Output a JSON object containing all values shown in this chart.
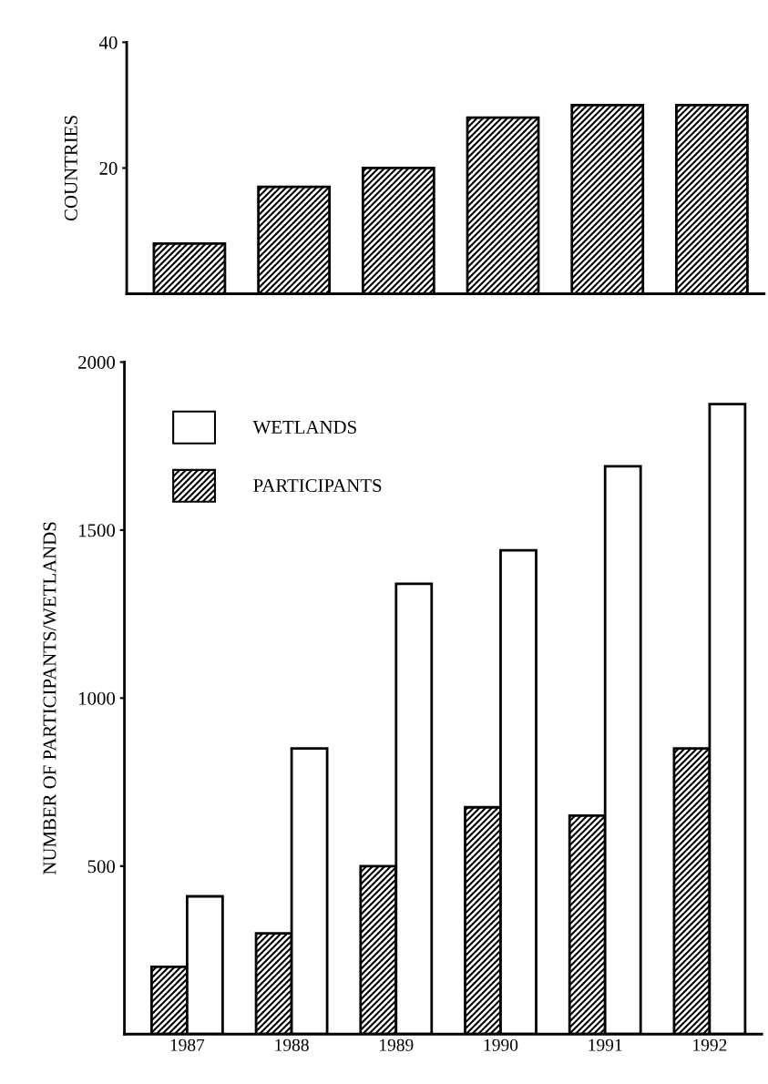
{
  "chart_data": [
    {
      "type": "bar",
      "ylabel": "COUNTRIES",
      "categories": [
        null,
        null,
        null,
        null,
        null,
        null
      ],
      "series": [
        {
          "color": "#000000",
          "values": [
            8,
            17,
            20,
            28,
            30,
            30
          ]
        }
      ],
      "ylim": [
        0,
        40
      ],
      "yticks": [
        20,
        40
      ],
      "tick_labels": "y",
      "grid": false,
      "legend": false
    },
    {
      "type": "bar",
      "ylabel": "NUMBER OF PARTICIPANTS/WETLANDS",
      "categories": [
        "1987",
        "1988",
        "1989",
        "1990",
        "1991",
        "1992"
      ],
      "series": [
        {
          "name": "PARTICIPANTS",
          "color": "#000000",
          "values": [
            200,
            300,
            500,
            675,
            650,
            850
          ]
        },
        {
          "name": "WETLANDS",
          "color": "#ffffff",
          "values": [
            410,
            850,
            1340,
            1440,
            1690,
            1875
          ]
        }
      ],
      "ylim": [
        0,
        2000
      ],
      "yticks": [
        500,
        1000,
        1500,
        2000
      ],
      "grid": false,
      "legend": "top left"
    }
  ]
}
